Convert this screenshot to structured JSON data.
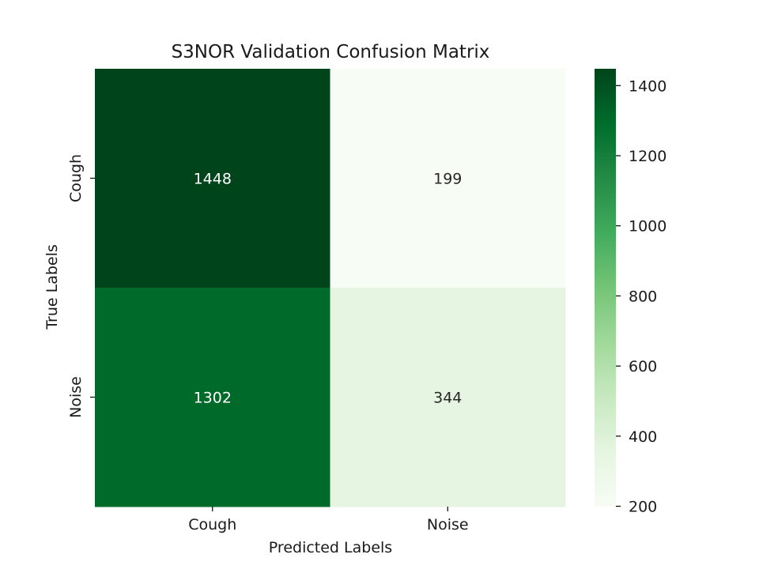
{
  "chart_data": {
    "type": "heatmap",
    "title": "S3NOR Validation Confusion Matrix",
    "xlabel": "Predicted Labels",
    "ylabel": "True Labels",
    "x_categories": [
      "Cough",
      "Noise"
    ],
    "y_categories": [
      "Cough",
      "Noise"
    ],
    "values": [
      [
        1448,
        199
      ],
      [
        1302,
        344
      ]
    ],
    "value_labels": [
      [
        "1448",
        "199"
      ],
      [
        "1302",
        "344"
      ]
    ],
    "colormap": "Greens",
    "color_range": [
      199,
      1448
    ],
    "colorbar_ticks": [
      200,
      400,
      600,
      800,
      1000,
      1200,
      1400
    ],
    "colorbar_tick_labels": [
      "200",
      "400",
      "600",
      "800",
      "1000",
      "1200",
      "1400"
    ]
  }
}
